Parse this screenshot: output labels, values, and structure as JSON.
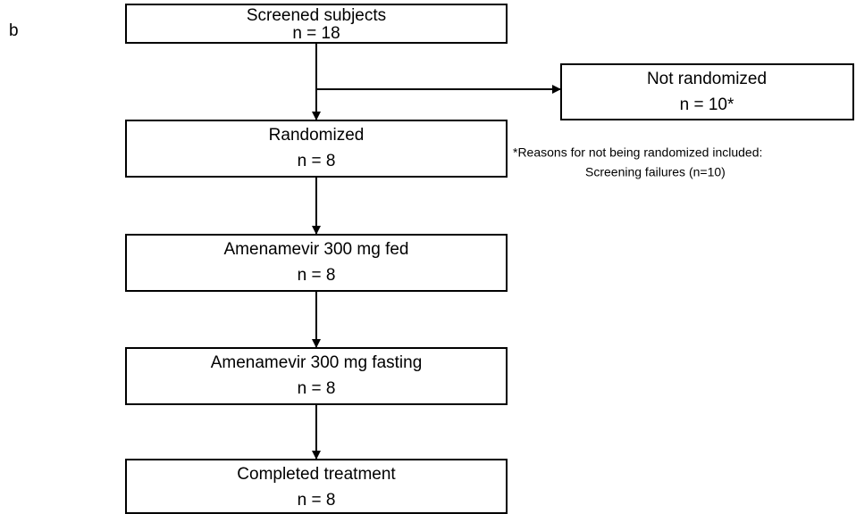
{
  "panel_label": "b",
  "nodes": [
    {
      "title": "Screened subjects",
      "count": "n = 18"
    },
    {
      "title": "Randomized",
      "count": "n = 8"
    },
    {
      "title": "Amenamevir 300 mg fed",
      "count": "n = 8"
    },
    {
      "title": "Amenamevir 300 mg fasting",
      "count": "n = 8"
    },
    {
      "title": "Completed treatment",
      "count": "n = 8"
    }
  ],
  "side_node": {
    "title": "Not randomized",
    "count": "n = 10*"
  },
  "footnote": [
    "*Reasons for not being randomized included:",
    "Screening failures (n=10)"
  ]
}
